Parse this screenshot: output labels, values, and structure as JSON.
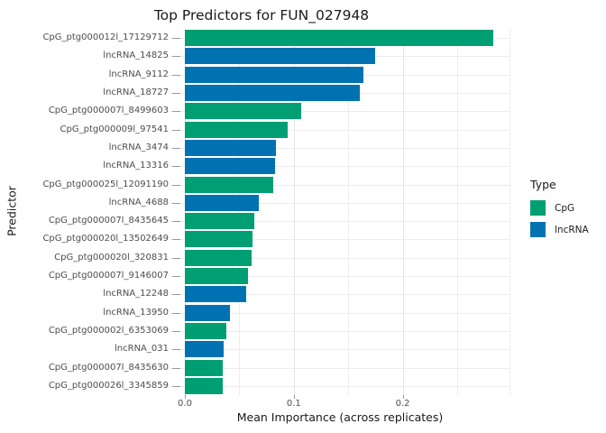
{
  "chart_data": {
    "type": "bar",
    "orientation": "horizontal",
    "title": "Top Predictors for FUN_027948",
    "xlabel": "Mean Importance (across replicates)",
    "ylabel": "Predictor",
    "xlim": [
      0,
      0.3
    ],
    "x_tick_labels": [
      "0.0",
      "0.1",
      "0.2"
    ],
    "x_tick_values": [
      0,
      0.1,
      0.2
    ],
    "gridline_step": 0.05,
    "grid": true,
    "legend_position": "right",
    "categories": [
      "CpG_ptg000012l_17129712",
      "lncRNA_14825",
      "lncRNA_9112",
      "lncRNA_18727",
      "CpG_ptg000007l_8499603",
      "CpG_ptg000009l_97541",
      "lncRNA_3474",
      "lncRNA_13316",
      "CpG_ptg000025l_12091190",
      "lncRNA_4688",
      "CpG_ptg000007l_8435645",
      "CpG_ptg000020l_13502649",
      "CpG_ptg000020l_320831",
      "CpG_ptg000007l_9146007",
      "lncRNA_12248",
      "lncRNA_13950",
      "CpG_ptg000002l_6353069",
      "lncRNA_031",
      "CpG_ptg000007l_8435630",
      "CpG_ptg000026l_3345859"
    ],
    "values": [
      0.283,
      0.175,
      0.164,
      0.161,
      0.107,
      0.094,
      0.084,
      0.083,
      0.081,
      0.068,
      0.064,
      0.062,
      0.061,
      0.058,
      0.056,
      0.041,
      0.038,
      0.036,
      0.035,
      0.035
    ],
    "types": [
      "CpG",
      "lncRNA",
      "lncRNA",
      "lncRNA",
      "CpG",
      "CpG",
      "lncRNA",
      "lncRNA",
      "CpG",
      "lncRNA",
      "CpG",
      "CpG",
      "CpG",
      "CpG",
      "lncRNA",
      "lncRNA",
      "CpG",
      "lncRNA",
      "CpG",
      "CpG"
    ],
    "colors": {
      "CpG": "#009E73",
      "lncRNA": "#0072B2"
    }
  },
  "legend": {
    "title": "Type",
    "items": [
      {
        "label": "CpG",
        "color": "#009E73"
      },
      {
        "label": "lncRNA",
        "color": "#0072B2"
      }
    ]
  }
}
